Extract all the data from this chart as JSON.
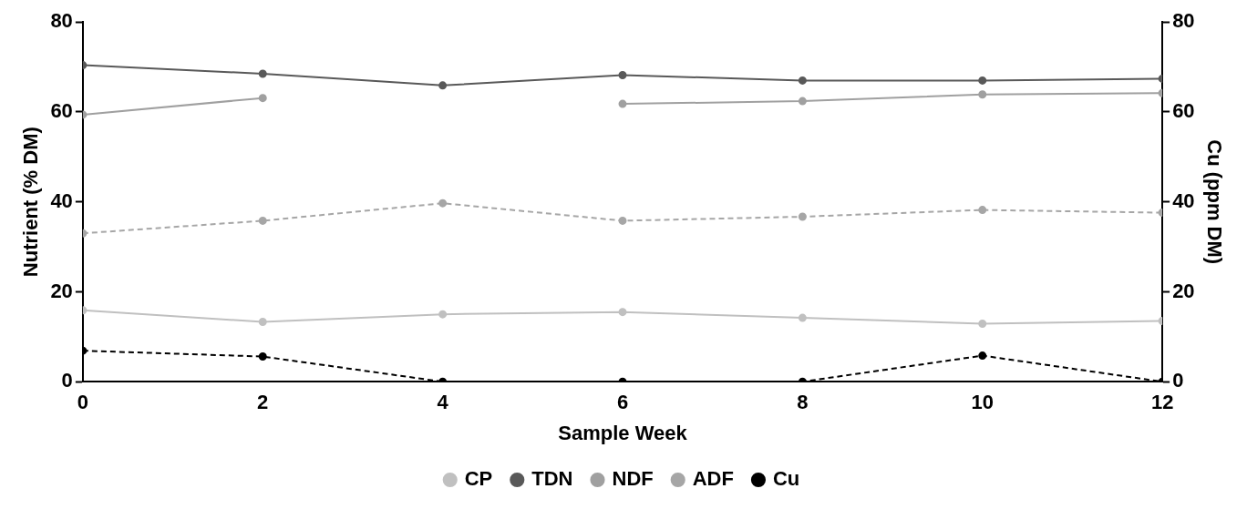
{
  "chart_data": {
    "type": "line",
    "xlabel": "Sample Week",
    "ylabel": "Nutrient (% DM)",
    "y2label": "Cu (ppm DM)",
    "x": [
      0,
      2,
      4,
      6,
      8,
      10,
      12
    ],
    "xlim": [
      0,
      12
    ],
    "xticks": [
      0,
      2,
      4,
      6,
      8,
      10,
      12
    ],
    "ylim": [
      0,
      80
    ],
    "yticks": [
      0,
      20,
      40,
      60,
      80
    ],
    "y2lim": [
      0,
      80
    ],
    "y2ticks": [
      0,
      20,
      40,
      60,
      80
    ],
    "grid": false,
    "legend": "bottom",
    "marker": "circle",
    "series": [
      {
        "name": "CP",
        "color": "#c0c0c0",
        "values": [
          15.9,
          13.3,
          15.0,
          15.5,
          14.2,
          12.9,
          13.5
        ]
      },
      {
        "name": "TDN",
        "color": "#595959",
        "values": [
          70.4,
          68.5,
          65.9,
          68.2,
          67.0,
          67.0,
          67.4
        ]
      },
      {
        "name": "NDF",
        "color": "#a0a0a0",
        "values": [
          59.4,
          63.1,
          null,
          61.8,
          62.4,
          63.9,
          64.2
        ]
      },
      {
        "name": "ADF",
        "color": "#a6a6a6",
        "line_style": "dashed",
        "values": [
          33.0,
          35.8,
          39.7,
          35.8,
          36.7,
          38.2,
          37.6
        ]
      },
      {
        "name": "Cu",
        "color": "#000000",
        "line_style": "dashed",
        "axis": "y2",
        "values": [
          6.9,
          5.6,
          0,
          0,
          0,
          5.8,
          0
        ]
      }
    ]
  }
}
